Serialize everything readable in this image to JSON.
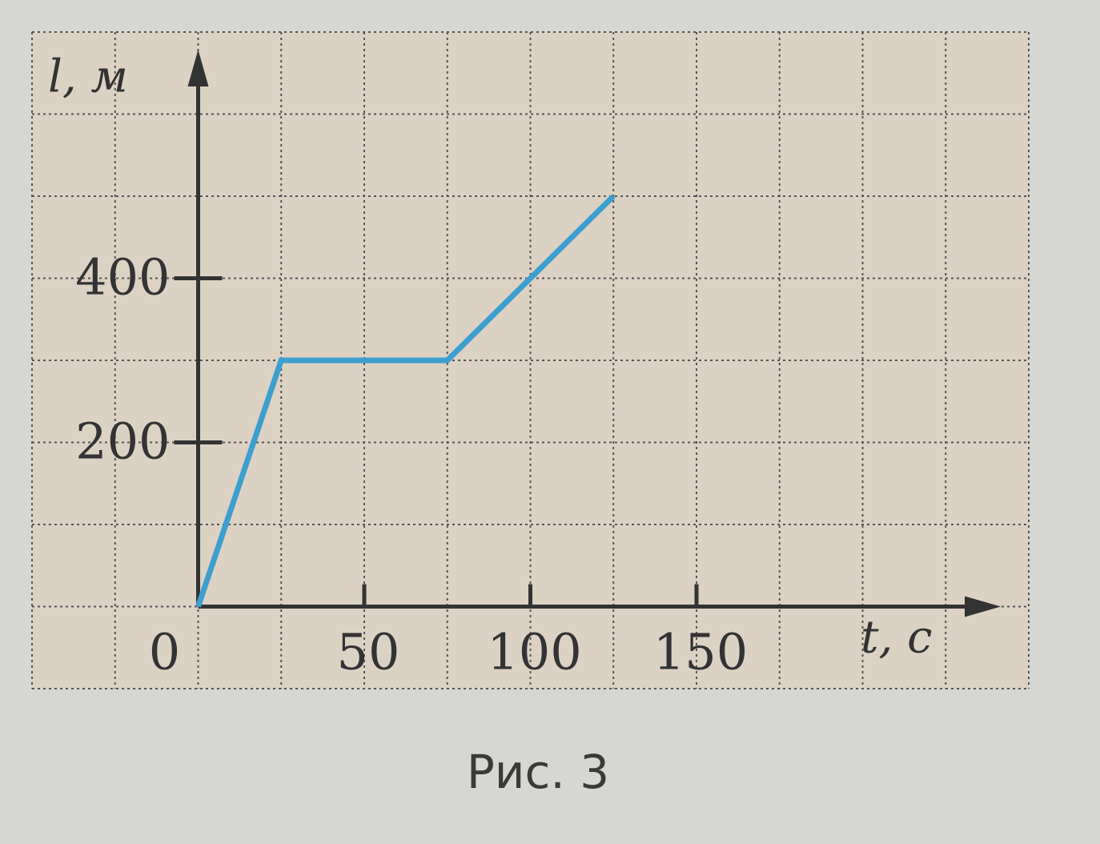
{
  "chart_data": {
    "type": "line",
    "x_label": "t, с",
    "y_label": "l, м",
    "caption": "Рис. 3",
    "x": [
      0,
      25,
      75,
      125
    ],
    "values": [
      0,
      300,
      300,
      500
    ],
    "color": "#3d9fcf",
    "xlim": [
      -50,
      250
    ],
    "ylim": [
      -100,
      700
    ],
    "xticks": [
      0,
      50,
      100,
      150
    ],
    "yticks": [
      200,
      400
    ],
    "grid": {
      "x_step": 25,
      "y_step": 100
    }
  }
}
